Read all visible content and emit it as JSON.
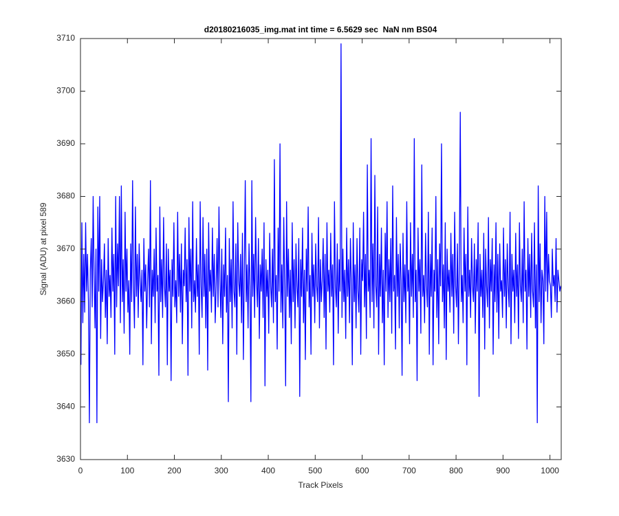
{
  "chart_data": {
    "type": "line",
    "title": "d20180216035_img.mat int time = 6.5629 sec  NaN nm BS04",
    "xlabel": "Track Pixels",
    "ylabel": "Signal (ADU) at pixel 589",
    "color": "#0000ff",
    "xlim": [
      0,
      1024
    ],
    "ylim": [
      3630,
      3710
    ],
    "xticks": [
      0,
      100,
      200,
      300,
      400,
      500,
      600,
      700,
      800,
      900,
      1000
    ],
    "yticks": [
      3630,
      3640,
      3650,
      3660,
      3670,
      3680,
      3690,
      3700,
      3710
    ],
    "x": [
      1,
      3,
      5,
      7,
      9,
      11,
      13,
      15,
      17,
      19,
      21,
      23,
      25,
      27,
      29,
      31,
      33,
      35,
      37,
      39,
      41,
      43,
      45,
      47,
      49,
      51,
      53,
      55,
      57,
      59,
      61,
      63,
      65,
      67,
      69,
      71,
      73,
      75,
      77,
      79,
      81,
      83,
      85,
      87,
      89,
      91,
      93,
      95,
      97,
      99,
      101,
      103,
      105,
      107,
      109,
      111,
      113,
      115,
      117,
      119,
      121,
      123,
      125,
      127,
      129,
      131,
      133,
      135,
      137,
      139,
      141,
      143,
      145,
      147,
      149,
      151,
      153,
      155,
      157,
      159,
      161,
      163,
      165,
      167,
      169,
      171,
      173,
      175,
      177,
      179,
      181,
      183,
      185,
      187,
      189,
      191,
      193,
      195,
      197,
      199,
      201,
      203,
      205,
      207,
      209,
      211,
      213,
      215,
      217,
      219,
      221,
      223,
      225,
      227,
      229,
      231,
      233,
      235,
      237,
      239,
      241,
      243,
      245,
      247,
      249,
      251,
      253,
      255,
      257,
      259,
      261,
      263,
      265,
      267,
      269,
      271,
      273,
      275,
      277,
      279,
      281,
      283,
      285,
      287,
      289,
      291,
      293,
      295,
      297,
      299,
      301,
      303,
      305,
      307,
      309,
      311,
      313,
      315,
      317,
      319,
      321,
      323,
      325,
      327,
      329,
      331,
      333,
      335,
      337,
      339,
      341,
      343,
      345,
      347,
      349,
      351,
      353,
      355,
      357,
      359,
      361,
      363,
      365,
      367,
      369,
      371,
      373,
      375,
      377,
      379,
      381,
      383,
      385,
      387,
      389,
      391,
      393,
      395,
      397,
      399,
      401,
      403,
      405,
      407,
      409,
      411,
      413,
      415,
      417,
      419,
      421,
      423,
      425,
      427,
      429,
      431,
      433,
      435,
      437,
      439,
      441,
      443,
      445,
      447,
      449,
      451,
      453,
      455,
      457,
      459,
      461,
      463,
      465,
      467,
      469,
      471,
      473,
      475,
      477,
      479,
      481,
      483,
      485,
      487,
      489,
      491,
      493,
      495,
      497,
      499,
      501,
      503,
      505,
      507,
      509,
      511,
      513,
      515,
      517,
      519,
      521,
      523,
      525,
      527,
      529,
      531,
      533,
      535,
      537,
      539,
      541,
      543,
      545,
      547,
      549,
      551,
      553,
      555,
      557,
      559,
      561,
      563,
      565,
      567,
      569,
      571,
      573,
      575,
      577,
      579,
      581,
      583,
      585,
      587,
      589,
      591,
      593,
      595,
      597,
      599,
      601,
      603,
      605,
      607,
      609,
      611,
      613,
      615,
      617,
      619,
      621,
      623,
      625,
      627,
      629,
      631,
      633,
      635,
      637,
      639,
      641,
      643,
      645,
      647,
      649,
      651,
      653,
      655,
      657,
      659,
      661,
      663,
      665,
      667,
      669,
      671,
      673,
      675,
      677,
      679,
      681,
      683,
      685,
      687,
      689,
      691,
      693,
      695,
      697,
      699,
      701,
      703,
      705,
      707,
      709,
      711,
      713,
      715,
      717,
      719,
      721,
      723,
      725,
      727,
      729,
      731,
      733,
      735,
      737,
      739,
      741,
      743,
      745,
      747,
      749,
      751,
      753,
      755,
      757,
      759,
      761,
      763,
      765,
      767,
      769,
      771,
      773,
      775,
      777,
      779,
      781,
      783,
      785,
      787,
      789,
      791,
      793,
      795,
      797,
      799,
      801,
      803,
      805,
      807,
      809,
      811,
      813,
      815,
      817,
      819,
      821,
      823,
      825,
      827,
      829,
      831,
      833,
      835,
      837,
      839,
      841,
      843,
      845,
      847,
      849,
      851,
      853,
      855,
      857,
      859,
      861,
      863,
      865,
      867,
      869,
      871,
      873,
      875,
      877,
      879,
      881,
      883,
      885,
      887,
      889,
      891,
      893,
      895,
      897,
      899,
      901,
      903,
      905,
      907,
      909,
      911,
      913,
      915,
      917,
      919,
      921,
      923,
      925,
      927,
      929,
      931,
      933,
      935,
      937,
      939,
      941,
      943,
      945,
      947,
      949,
      951,
      953,
      955,
      957,
      959,
      961,
      963,
      965,
      967,
      969,
      971,
      973,
      975,
      977,
      979,
      981,
      983,
      985,
      987,
      989,
      991,
      993,
      995,
      997,
      999,
      1001,
      1003,
      1005,
      1007,
      1009,
      1011,
      1013,
      1015,
      1017,
      1019,
      1021,
      1023
    ],
    "values": [
      3648,
      3675,
      3656,
      3669,
      3658,
      3675,
      3662,
      3669,
      3660,
      3637,
      3666,
      3672,
      3659,
      3680,
      3665,
      3655,
      3670,
      3637,
      3678,
      3662,
      3680,
      3653,
      3668,
      3660,
      3664,
      3671,
      3657,
      3666,
      3652,
      3672,
      3661,
      3665,
      3657,
      3674,
      3662,
      3669,
      3650,
      3680,
      3659,
      3671,
      3663,
      3680,
      3656,
      3682,
      3660,
      3668,
      3654,
      3677,
      3662,
      3670,
      3658,
      3664,
      3650,
      3671,
      3660,
      3683,
      3663,
      3655,
      3678,
      3661,
      3669,
      3657,
      3671,
      3664,
      3660,
      3666,
      3648,
      3672,
      3662,
      3667,
      3655,
      3664,
      3670,
      3659,
      3683,
      3652,
      3666,
      3661,
      3670,
      3656,
      3674,
      3662,
      3665,
      3646,
      3678,
      3660,
      3668,
      3657,
      3676,
      3663,
      3659,
      3671,
      3648,
      3670,
      3662,
      3666,
      3645,
      3668,
      3661,
      3675,
      3659,
      3664,
      3656,
      3677,
      3661,
      3669,
      3658,
      3671,
      3652,
      3666,
      3663,
      3674,
      3660,
      3668,
      3646,
      3676,
      3662,
      3670,
      3655,
      3679,
      3660,
      3664,
      3658,
      3672,
      3661,
      3667,
      3650,
      3679,
      3663,
      3657,
      3676,
      3661,
      3669,
      3655,
      3670,
      3647,
      3675,
      3662,
      3666,
      3658,
      3674,
      3661,
      3669,
      3656,
      3663,
      3672,
      3659,
      3678,
      3664,
      3657,
      3670,
      3652,
      3667,
      3661,
      3674,
      3658,
      3665,
      3641,
      3672,
      3660,
      3668,
      3655,
      3679,
      3662,
      3659,
      3671,
      3650,
      3675,
      3664,
      3661,
      3669,
      3656,
      3673,
      3649,
      3666,
      3683,
      3660,
      3667,
      3655,
      3671,
      3663,
      3641,
      3683,
      3661,
      3669,
      3657,
      3676,
      3664,
      3659,
      3672,
      3653,
      3667,
      3662,
      3670,
      3657,
      3675,
      3644,
      3668,
      3661,
      3666,
      3654,
      3673,
      3663,
      3659,
      3670,
      3656,
      3687,
      3660,
      3665,
      3651,
      3674,
      3662,
      3690,
      3658,
      3667,
      3655,
      3676,
      3663,
      3644,
      3679,
      3661,
      3670,
      3657,
      3666,
      3652,
      3675,
      3660,
      3668,
      3655,
      3671,
      3663,
      3659,
      3672,
      3642,
      3668,
      3661,
      3674,
      3656,
      3666,
      3649,
      3670,
      3662,
      3678,
      3659,
      3665,
      3650,
      3673,
      3661,
      3667,
      3656,
      3671,
      3663,
      3660,
      3676,
      3655,
      3668,
      3660,
      3664,
      3672,
      3657,
      3669,
      3651,
      3675,
      3662,
      3666,
      3658,
      3673,
      3661,
      3667,
      3648,
      3679,
      3663,
      3659,
      3671,
      3654,
      3668,
      3662,
      3709,
      3657,
      3670,
      3660,
      3666,
      3653,
      3674,
      3661,
      3668,
      3656,
      3672,
      3663,
      3648,
      3675,
      3660,
      3667,
      3655,
      3672,
      3662,
      3658,
      3674,
      3650,
      3668,
      3664,
      3677,
      3659,
      3669,
      3653,
      3686,
      3662,
      3666,
      3657,
      3691,
      3660,
      3671,
      3655,
      3684,
      3663,
      3659,
      3678,
      3650,
      3669,
      3661,
      3674,
      3656,
      3666,
      3648,
      3673,
      3662,
      3679,
      3657,
      3668,
      3660,
      3672,
      3654,
      3682,
      3662,
      3665,
      3651,
      3676,
      3661,
      3669,
      3655,
      3671,
      3664,
      3646,
      3673,
      3660,
      3667,
      3656,
      3679,
      3662,
      3666,
      3652,
      3675,
      3661,
      3669,
      3657,
      3691,
      3660,
      3666,
      3645,
      3674,
      3662,
      3668,
      3654,
      3686,
      3661,
      3665,
      3656,
      3673,
      3663,
      3659,
      3677,
      3650,
      3669,
      3661,
      3674,
      3648,
      3666,
      3662,
      3680,
      3657,
      3668,
      3652,
      3671,
      3663,
      3690,
      3660,
      3667,
      3655,
      3675,
      3649,
      3670,
      3662,
      3666,
      3658,
      3673,
      3661,
      3669,
      3654,
      3677,
      3663,
      3659,
      3671,
      3652,
      3668,
      3696,
      3660,
      3665,
      3656,
      3674,
      3662,
      3669,
      3648,
      3678,
      3661,
      3666,
      3657,
      3672,
      3663,
      3660,
      3671,
      3654,
      3668,
      3662,
      3675,
      3642,
      3669,
      3661,
      3666,
      3657,
      3673,
      3651,
      3670,
      3663,
      3659,
      3676,
      3655,
      3668,
      3662,
      3672,
      3650,
      3667,
      3660,
      3675,
      3658,
      3669,
      3653,
      3671,
      3662,
      3664,
      3657,
      3674,
      3661,
      3668,
      3655,
      3671,
      3663,
      3659,
      3677,
      3652,
      3669,
      3662,
      3666,
      3656,
      3673,
      3661,
      3667,
      3653,
      3675,
      3663,
      3660,
      3670,
      3656,
      3679,
      3662,
      3666,
      3651,
      3672,
      3661,
      3669,
      3657,
      3673,
      3662,
      3659,
      3675,
      3655,
      3667,
      3637,
      3682,
      3660,
      3671,
      3656,
      3666,
      3664,
      3652,
      3680,
      3662,
      3677,
      3660,
      3669,
      3664,
      3663,
      3657,
      3670,
      3663,
      3665,
      3660,
      3672,
      3658,
      3666,
      3664,
      3662,
      3663
    ]
  }
}
